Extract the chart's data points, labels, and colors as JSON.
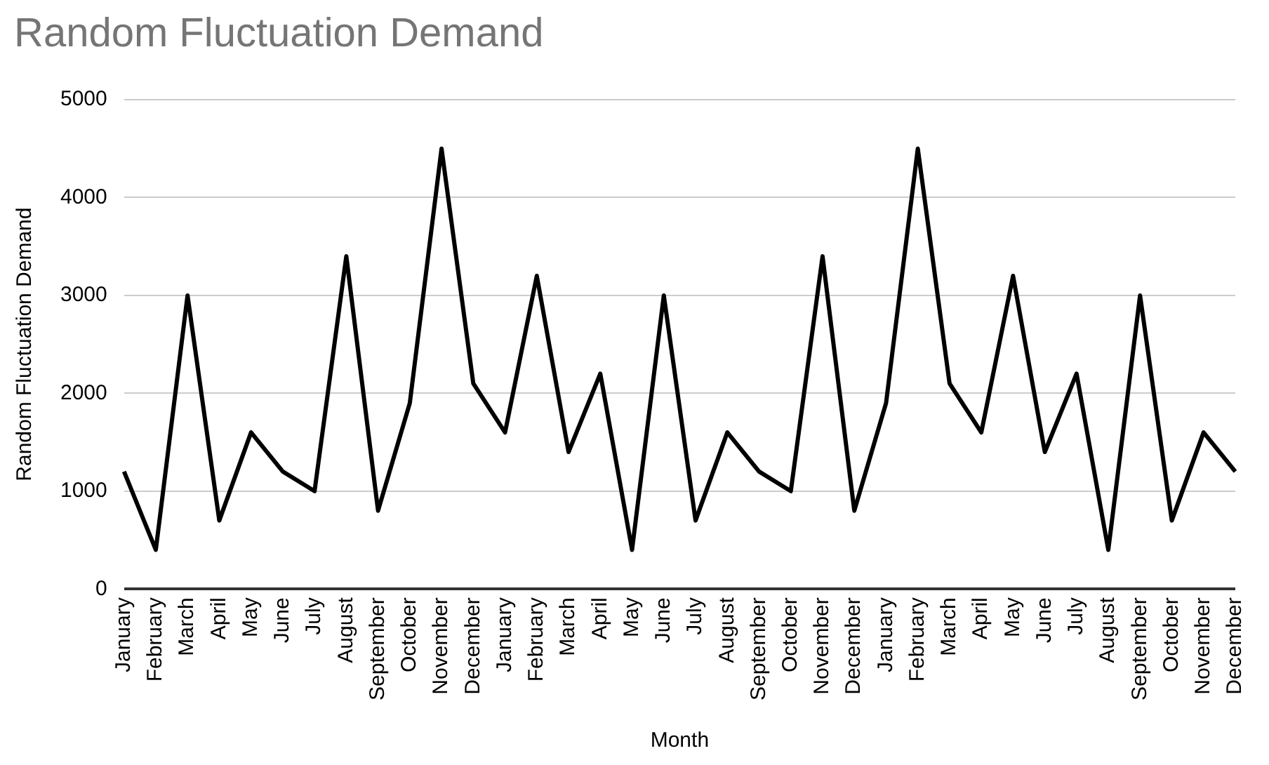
{
  "chart_data": {
    "type": "line",
    "title": "Random Fluctuation Demand",
    "xlabel": "Month",
    "ylabel": "Random Fluctuation Demand",
    "categories": [
      "January",
      "February",
      "March",
      "April",
      "May",
      "June",
      "July",
      "August",
      "September",
      "October",
      "November",
      "December",
      "January",
      "February",
      "March",
      "April",
      "May",
      "June",
      "July",
      "August",
      "September",
      "October",
      "November",
      "December",
      "January",
      "February",
      "March",
      "April",
      "May",
      "June",
      "July",
      "August",
      "September",
      "October",
      "November",
      "December"
    ],
    "series": [
      {
        "color": "#000000",
        "values": [
          1200,
          400,
          3000,
          700,
          1600,
          1200,
          1000,
          3400,
          800,
          1900,
          4500,
          2100,
          1600,
          3200,
          1400,
          2200,
          400,
          3000,
          700,
          1600,
          1200,
          1000,
          3400,
          800,
          1900,
          4500,
          2100,
          1600,
          3200,
          1400,
          2200,
          400,
          3000,
          700,
          1600,
          1200
        ]
      }
    ],
    "ylim": [
      0,
      5000
    ],
    "yticks": [
      0,
      1000,
      2000,
      3000,
      4000,
      5000
    ],
    "grid": "y",
    "legend": false,
    "marker": "none",
    "line_style": "solid"
  }
}
